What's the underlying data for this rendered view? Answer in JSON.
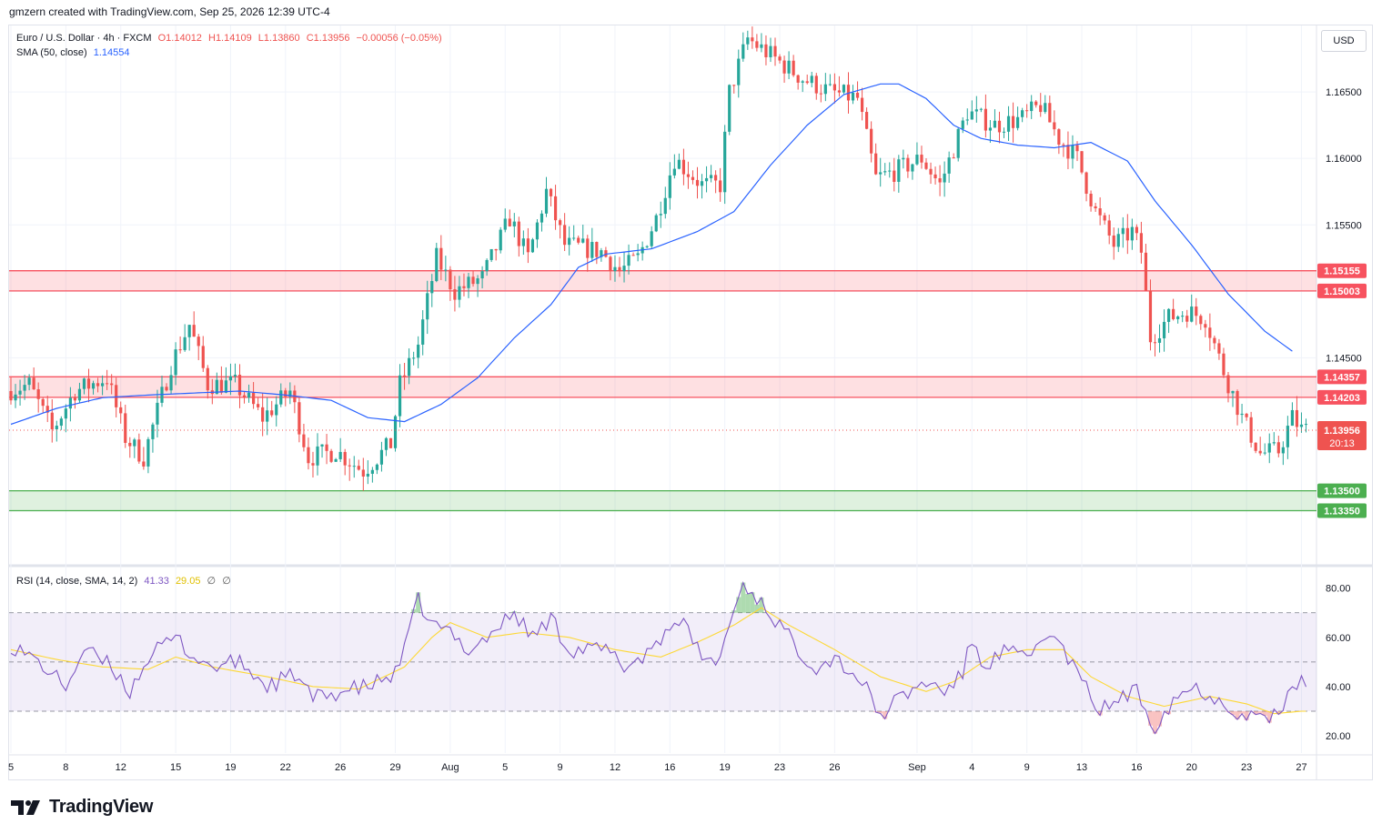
{
  "header": {
    "attribution": "gmzern created with TradingView.com, Sep 25, 2026 12:39 UTC-4"
  },
  "legend": {
    "symbol": "Euro / U.S. Dollar · 4h · FXCM",
    "open": "O1.14012",
    "high": "H1.14109",
    "low": "L1.13860",
    "close": "C1.13956",
    "change": "−0.00056 (−0.05%)",
    "sma_label": "SMA (50, close)",
    "sma_value": "1.14554",
    "rsi_label": "RSI (14, close, SMA, 14, 2)",
    "rsi_value": "41.33",
    "rsi_sma_value": "29.05",
    "rsi_extra1": "∅",
    "rsi_extra2": "∅"
  },
  "currency": "USD",
  "countdown": "20:13",
  "brand": {
    "name": "TradingView"
  },
  "colors": {
    "up": "#26a69a",
    "down": "#ef5350",
    "sma": "#2962ff",
    "zone_red": "#f7525f",
    "zone_green": "#4caf50",
    "rsi": "#7e57c2",
    "rsi_sma": "#fdd835"
  },
  "chart_data": {
    "type": "candlestick",
    "symbol": "EURUSD",
    "timeframe": "4h",
    "y_range": [
      1.1295,
      1.17
    ],
    "price_ticks": [
      "1.14500",
      "1.15000",
      "1.15500",
      "1.16000",
      "1.16500"
    ],
    "x_labels": [
      {
        "label": "5",
        "bar": 0
      },
      {
        "label": "8",
        "bar": 12
      },
      {
        "label": "12",
        "bar": 24
      },
      {
        "label": "15",
        "bar": 36
      },
      {
        "label": "19",
        "bar": 48
      },
      {
        "label": "22",
        "bar": 60
      },
      {
        "label": "26",
        "bar": 72
      },
      {
        "label": "29",
        "bar": 84
      },
      {
        "label": "Aug",
        "bar": 96
      },
      {
        "label": "5",
        "bar": 108
      },
      {
        "label": "9",
        "bar": 120
      },
      {
        "label": "12",
        "bar": 132
      },
      {
        "label": "16",
        "bar": 144
      },
      {
        "label": "19",
        "bar": 156
      },
      {
        "label": "23",
        "bar": 168
      },
      {
        "label": "26",
        "bar": 180
      },
      {
        "label": "Sep",
        "bar": 198
      },
      {
        "label": "4",
        "bar": 210
      },
      {
        "label": "9",
        "bar": 222
      },
      {
        "label": "13",
        "bar": 234
      },
      {
        "label": "16",
        "bar": 246
      },
      {
        "label": "20",
        "bar": 258
      },
      {
        "label": "23",
        "bar": 270
      },
      {
        "label": "27",
        "bar": 282
      }
    ],
    "zones": [
      {
        "top": "1.15155",
        "bottom": "1.15003",
        "color": "red"
      },
      {
        "top": "1.14357",
        "bottom": "1.14203",
        "color": "red"
      },
      {
        "top": "1.13500",
        "bottom": "1.13350",
        "color": "green"
      }
    ],
    "last_price": "1.13956",
    "close_path_anchors": [
      [
        0,
        1.1425
      ],
      [
        5,
        1.143
      ],
      [
        10,
        1.1395
      ],
      [
        15,
        1.1425
      ],
      [
        22,
        1.1435
      ],
      [
        26,
        1.139
      ],
      [
        30,
        1.1375
      ],
      [
        36,
        1.1445
      ],
      [
        40,
        1.1475
      ],
      [
        44,
        1.143
      ],
      [
        50,
        1.143
      ],
      [
        56,
        1.1405
      ],
      [
        62,
        1.1425
      ],
      [
        66,
        1.1375
      ],
      [
        72,
        1.138
      ],
      [
        78,
        1.1365
      ],
      [
        84,
        1.1385
      ],
      [
        86,
        1.143
      ],
      [
        90,
        1.146
      ],
      [
        94,
        1.1525
      ],
      [
        98,
        1.15
      ],
      [
        104,
        1.151
      ],
      [
        110,
        1.1555
      ],
      [
        114,
        1.1525
      ],
      [
        118,
        1.1575
      ],
      [
        122,
        1.1535
      ],
      [
        130,
        1.153
      ],
      [
        134,
        1.1515
      ],
      [
        138,
        1.1525
      ],
      [
        142,
        1.1555
      ],
      [
        146,
        1.16
      ],
      [
        152,
        1.158
      ],
      [
        156,
        1.158
      ],
      [
        158,
        1.165
      ],
      [
        162,
        1.169
      ],
      [
        168,
        1.1675
      ],
      [
        174,
        1.166
      ],
      [
        180,
        1.165
      ],
      [
        186,
        1.1645
      ],
      [
        190,
        1.1585
      ],
      [
        194,
        1.159
      ],
      [
        200,
        1.16
      ],
      [
        204,
        1.158
      ],
      [
        210,
        1.1635
      ],
      [
        216,
        1.1625
      ],
      [
        222,
        1.163
      ],
      [
        226,
        1.164
      ],
      [
        230,
        1.1615
      ],
      [
        234,
        1.16
      ],
      [
        238,
        1.156
      ],
      [
        242,
        1.1535
      ],
      [
        246,
        1.1545
      ],
      [
        248,
        1.153
      ],
      [
        250,
        1.1465
      ],
      [
        254,
        1.148
      ],
      [
        258,
        1.1485
      ],
      [
        262,
        1.148
      ],
      [
        266,
        1.144
      ],
      [
        270,
        1.1405
      ],
      [
        274,
        1.1378
      ],
      [
        278,
        1.138
      ],
      [
        281,
        1.1405
      ],
      [
        283,
        1.1396
      ]
    ],
    "sma_path_anchors": [
      [
        0,
        1.14
      ],
      [
        10,
        1.1412
      ],
      [
        20,
        1.142
      ],
      [
        30,
        1.1422
      ],
      [
        50,
        1.1425
      ],
      [
        60,
        1.1422
      ],
      [
        70,
        1.1418
      ],
      [
        78,
        1.1405
      ],
      [
        86,
        1.1402
      ],
      [
        94,
        1.1415
      ],
      [
        102,
        1.1435
      ],
      [
        110,
        1.1465
      ],
      [
        118,
        1.149
      ],
      [
        124,
        1.1518
      ],
      [
        130,
        1.1528
      ],
      [
        140,
        1.1532
      ],
      [
        150,
        1.1545
      ],
      [
        158,
        1.156
      ],
      [
        166,
        1.1595
      ],
      [
        174,
        1.1625
      ],
      [
        182,
        1.1648
      ],
      [
        190,
        1.1656
      ],
      [
        194,
        1.1656
      ],
      [
        200,
        1.1645
      ],
      [
        206,
        1.1625
      ],
      [
        212,
        1.1615
      ],
      [
        220,
        1.161
      ],
      [
        228,
        1.1608
      ],
      [
        236,
        1.1612
      ],
      [
        244,
        1.1598
      ],
      [
        250,
        1.1568
      ],
      [
        258,
        1.1535
      ],
      [
        266,
        1.1498
      ],
      [
        274,
        1.147
      ],
      [
        280,
        1.1455
      ]
    ],
    "rsi": {
      "y_range": [
        13,
        88
      ],
      "ticks": [
        "20.00",
        "40.00",
        "60.00",
        "80.00"
      ],
      "bands": [
        30,
        50,
        70
      ],
      "value_anchors": [
        [
          0,
          57
        ],
        [
          6,
          50
        ],
        [
          12,
          40
        ],
        [
          16,
          55
        ],
        [
          22,
          48
        ],
        [
          26,
          38
        ],
        [
          30,
          52
        ],
        [
          36,
          60
        ],
        [
          40,
          52
        ],
        [
          44,
          48
        ],
        [
          50,
          50
        ],
        [
          56,
          40
        ],
        [
          62,
          45
        ],
        [
          66,
          35
        ],
        [
          72,
          38
        ],
        [
          78,
          40
        ],
        [
          84,
          45
        ],
        [
          86,
          55
        ],
        [
          89,
          75
        ],
        [
          92,
          65
        ],
        [
          96,
          62
        ],
        [
          100,
          55
        ],
        [
          104,
          60
        ],
        [
          110,
          70
        ],
        [
          114,
          60
        ],
        [
          118,
          68
        ],
        [
          122,
          55
        ],
        [
          130,
          55
        ],
        [
          134,
          48
        ],
        [
          138,
          52
        ],
        [
          142,
          60
        ],
        [
          146,
          68
        ],
        [
          150,
          55
        ],
        [
          154,
          48
        ],
        [
          157,
          65
        ],
        [
          160,
          82
        ],
        [
          164,
          74
        ],
        [
          168,
          65
        ],
        [
          172,
          55
        ],
        [
          176,
          48
        ],
        [
          180,
          52
        ],
        [
          186,
          42
        ],
        [
          190,
          28
        ],
        [
          194,
          35
        ],
        [
          200,
          42
        ],
        [
          204,
          38
        ],
        [
          208,
          45
        ],
        [
          210,
          60
        ],
        [
          212,
          48
        ],
        [
          218,
          55
        ],
        [
          222,
          50
        ],
        [
          226,
          62
        ],
        [
          230,
          55
        ],
        [
          234,
          42
        ],
        [
          238,
          30
        ],
        [
          242,
          35
        ],
        [
          246,
          38
        ],
        [
          250,
          24
        ],
        [
          254,
          35
        ],
        [
          258,
          40
        ],
        [
          262,
          37
        ],
        [
          266,
          32
        ],
        [
          270,
          28
        ],
        [
          274,
          28
        ],
        [
          278,
          28
        ],
        [
          280,
          42
        ],
        [
          282,
          41
        ]
      ],
      "sma_anchors": [
        [
          0,
          55
        ],
        [
          10,
          51
        ],
        [
          20,
          48
        ],
        [
          30,
          47
        ],
        [
          36,
          52
        ],
        [
          44,
          48
        ],
        [
          56,
          44
        ],
        [
          66,
          40
        ],
        [
          76,
          39
        ],
        [
          86,
          48
        ],
        [
          92,
          60
        ],
        [
          96,
          66
        ],
        [
          104,
          60
        ],
        [
          112,
          62
        ],
        [
          122,
          60
        ],
        [
          132,
          55
        ],
        [
          142,
          52
        ],
        [
          150,
          58
        ],
        [
          158,
          65
        ],
        [
          164,
          72
        ],
        [
          170,
          65
        ],
        [
          180,
          55
        ],
        [
          190,
          44
        ],
        [
          200,
          38
        ],
        [
          206,
          42
        ],
        [
          214,
          52
        ],
        [
          222,
          55
        ],
        [
          230,
          55
        ],
        [
          236,
          44
        ],
        [
          244,
          36
        ],
        [
          252,
          32
        ],
        [
          262,
          36
        ],
        [
          270,
          33
        ],
        [
          276,
          29
        ],
        [
          282,
          30
        ]
      ]
    }
  }
}
